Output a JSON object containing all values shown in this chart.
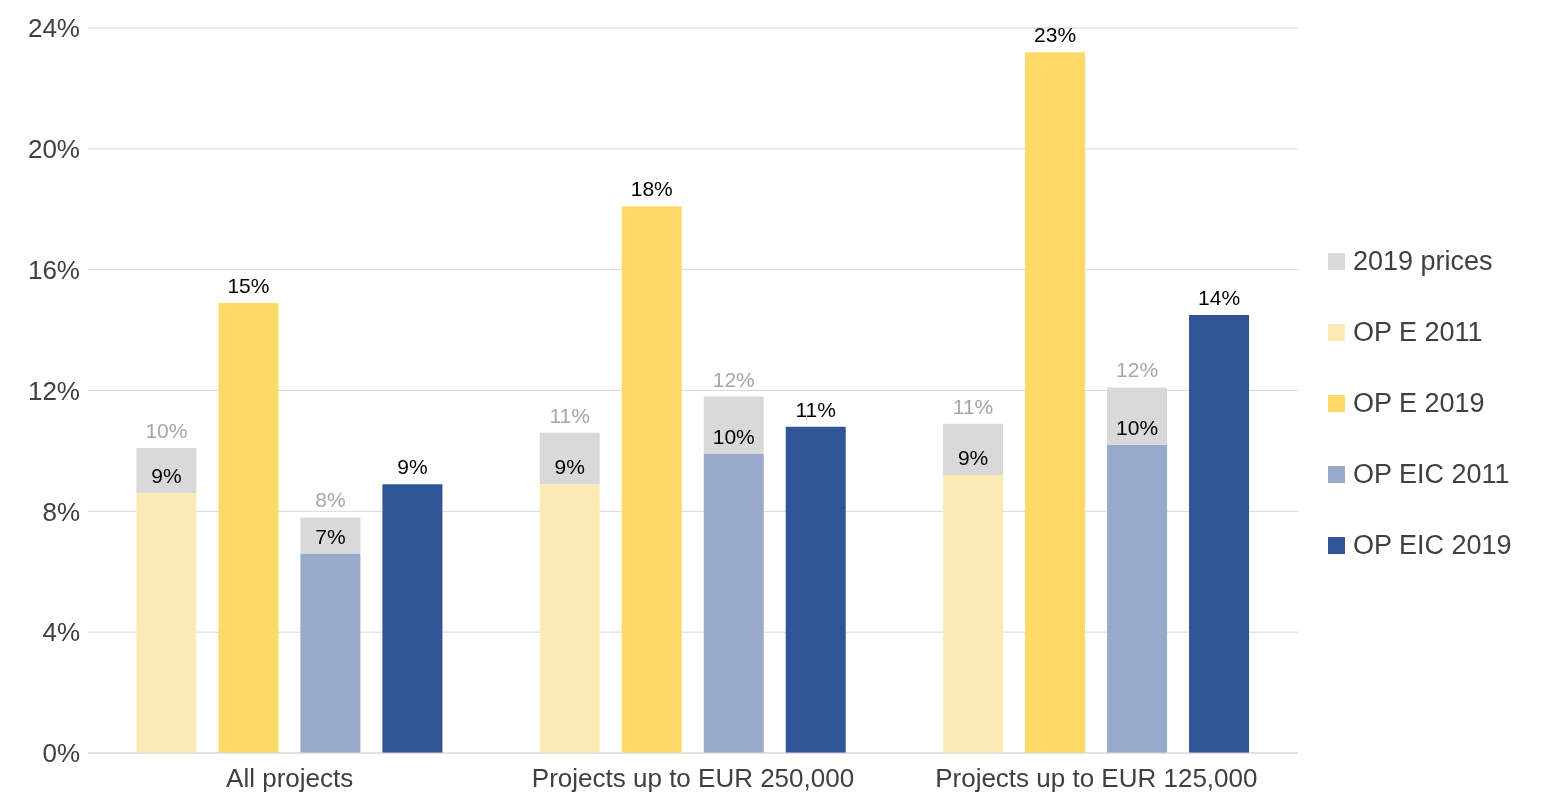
{
  "chart_data": {
    "type": "bar",
    "categories": [
      "All projects",
      "Projects up to EUR 250,000",
      "Projects up to EUR 125,000"
    ],
    "series": [
      {
        "name": "2019 prices",
        "color": "#d9d9d9",
        "base": [
          8.6,
          8.9,
          9.2
        ],
        "values": [
          1.5,
          1.7,
          1.7
        ],
        "value_labels": [
          "10%",
          "11%",
          "11%"
        ]
      },
      {
        "name": "OP E 2011",
        "color": "#fceab4",
        "values": [
          8.6,
          8.9,
          9.2
        ],
        "value_labels": [
          "9%",
          "9%",
          "9%"
        ]
      },
      {
        "name": "OP E 2019",
        "color": "#fdd968",
        "values": [
          14.9,
          18.1,
          23.2
        ],
        "value_labels": [
          "15%",
          "18%",
          "23%"
        ]
      },
      {
        "color": "#d9d9d9",
        "base": [
          6.6,
          9.9,
          10.2
        ],
        "values": [
          1.2,
          1.9,
          1.9
        ],
        "value_labels": [
          "8%",
          "12%",
          "12%"
        ]
      },
      {
        "name": "OP EIC 2011",
        "color": "#97aacb",
        "values": [
          6.6,
          9.9,
          10.2
        ],
        "value_labels": [
          "7%",
          "10%",
          "10%"
        ]
      },
      {
        "name": "OP EIC 2019",
        "color": "#2f5597",
        "values": [
          8.9,
          10.8,
          14.5
        ],
        "value_labels": [
          "9%",
          "11%",
          "14%"
        ]
      }
    ],
    "ylim": [
      0,
      24
    ],
    "yticks": [
      {
        "value": 0,
        "label": "0%"
      },
      {
        "value": 4,
        "label": "4%"
      },
      {
        "value": 8,
        "label": "8%"
      },
      {
        "value": 12,
        "label": "12%"
      },
      {
        "value": 16,
        "label": "16%"
      },
      {
        "value": 20,
        "label": "20%"
      },
      {
        "value": 24,
        "label": "24%"
      }
    ],
    "grid": "y",
    "legend": "right"
  }
}
